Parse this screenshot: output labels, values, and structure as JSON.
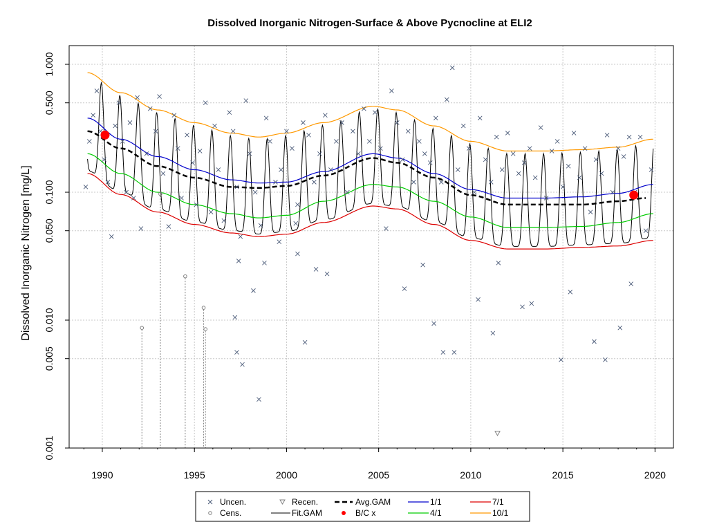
{
  "chart_data": {
    "type": "scatter",
    "title": "Dissolved Inorganic Nitrogen-Surface & Above Pycnocline at ELI2",
    "xlabel": "",
    "ylabel": "Dissolved Inorganic Nitrogen [mg/L]",
    "x_scale": "linear",
    "y_scale": "log",
    "xlim": [
      1988.2,
      2021.0
    ],
    "ylim": [
      0.001,
      1.4
    ],
    "x_ticks": [
      1990,
      1995,
      2000,
      2005,
      2010,
      2015,
      2020
    ],
    "x_tick_labels": [
      "1990",
      "1995",
      "2000",
      "2005",
      "2010",
      "2015",
      "2020"
    ],
    "y_ticks": [
      0.001,
      0.005,
      0.01,
      0.05,
      0.1,
      0.5,
      1.0
    ],
    "y_tick_labels": [
      "0.001",
      "0.005",
      "0.010",
      "0.050",
      "0.100",
      "0.500",
      "1.000"
    ],
    "grid": true,
    "legend_position": "bottom-center",
    "legend": [
      {
        "label": "Uncen.",
        "symbol": "x"
      },
      {
        "label": "Cens.",
        "symbol": "o"
      },
      {
        "label": "Recen.",
        "symbol": "triangle-down"
      },
      {
        "label": "Fit.GAM",
        "symbol": "line-black"
      },
      {
        "label": "Avg.GAM",
        "symbol": "dash-black"
      },
      {
        "label": "B/C x",
        "symbol": "red-diamond"
      },
      {
        "label": "1/1",
        "symbol": "line-blue"
      },
      {
        "label": "4/1",
        "symbol": "line-green"
      },
      {
        "label": "7/1",
        "symbol": "line-red"
      },
      {
        "label": "10/1",
        "symbol": "line-orange"
      }
    ],
    "colors": {
      "uncen": "#4a5a78",
      "cens": "#808080",
      "fit": "#000000",
      "avg": "#000000",
      "bc": "#ff0000",
      "jan1": "#0000cc",
      "apr1": "#00cc00",
      "jul1": "#dd0000",
      "oct1": "#ff9900",
      "grid": "#c8c8c8"
    },
    "seasonal_curves": [
      {
        "name": "1/1",
        "color_key": "jan1",
        "x": [
          1989.2,
          1991,
          1993,
          1995,
          1997,
          1998.5,
          2000,
          2002,
          2004.7,
          2006,
          2008,
          2010,
          2012,
          2014,
          2016,
          2018,
          2019.9
        ],
        "y": [
          0.38,
          0.26,
          0.19,
          0.15,
          0.125,
          0.118,
          0.12,
          0.145,
          0.2,
          0.185,
          0.14,
          0.105,
          0.09,
          0.09,
          0.092,
          0.098,
          0.115
        ]
      },
      {
        "name": "4/1",
        "color_key": "apr1",
        "x": [
          1989.2,
          1991,
          1993,
          1995,
          1997,
          1998.5,
          2000,
          2002,
          2004.7,
          2006,
          2008,
          2010,
          2012,
          2014,
          2016,
          2018,
          2019.9
        ],
        "y": [
          0.2,
          0.14,
          0.1,
          0.08,
          0.068,
          0.063,
          0.066,
          0.085,
          0.115,
          0.11,
          0.085,
          0.064,
          0.053,
          0.053,
          0.054,
          0.058,
          0.068
        ]
      },
      {
        "name": "7/1",
        "color_key": "jul1",
        "x": [
          1989.2,
          1991,
          1993,
          1995,
          1997,
          1998.5,
          2000,
          2002,
          2004.7,
          2006,
          2008,
          2010,
          2012,
          2014,
          2016,
          2018,
          2019.9
        ],
        "y": [
          0.14,
          0.096,
          0.07,
          0.056,
          0.048,
          0.045,
          0.047,
          0.058,
          0.078,
          0.074,
          0.056,
          0.042,
          0.036,
          0.036,
          0.037,
          0.038,
          0.042
        ]
      },
      {
        "name": "10/1",
        "color_key": "oct1",
        "x": [
          1989.2,
          1991,
          1993,
          1995,
          1997,
          1998.5,
          2000,
          2002,
          2004.7,
          2006,
          2008,
          2010,
          2012,
          2014,
          2016,
          2018,
          2019.9
        ],
        "y": [
          0.86,
          0.6,
          0.44,
          0.35,
          0.29,
          0.27,
          0.29,
          0.35,
          0.47,
          0.44,
          0.33,
          0.25,
          0.21,
          0.21,
          0.215,
          0.225,
          0.26
        ]
      },
      {
        "name": "Avg.GAM",
        "color_key": "avg",
        "dashed": true,
        "x": [
          1989.2,
          1991,
          1993,
          1995,
          1997,
          1998.5,
          2000,
          2002,
          2004.7,
          2006,
          2008,
          2010,
          2012,
          2014,
          2016,
          2018,
          2019.5
        ],
        "y": [
          0.3,
          0.22,
          0.16,
          0.13,
          0.11,
          0.108,
          0.112,
          0.135,
          0.185,
          0.17,
          0.13,
          0.095,
          0.08,
          0.08,
          0.08,
          0.085,
          0.09
        ]
      }
    ],
    "fit_gam": {
      "start_year": 1989.2,
      "end_year": 2019.9,
      "cycle_years": 1.0,
      "upper_curve": "10/1",
      "lower_curve": "7/1"
    },
    "bc_points": [
      {
        "x": 1990.15,
        "y": 0.28
      },
      {
        "x": 2018.85,
        "y": 0.095
      }
    ],
    "uncensored_points": {
      "x": [
        1989.1,
        1989.3,
        1989.5,
        1989.7,
        1989.9,
        1990.1,
        1990.3,
        1990.5,
        1990.7,
        1990.9,
        1991.1,
        1991.3,
        1991.5,
        1991.7,
        1991.9,
        1992.1,
        1992.4,
        1992.6,
        1992.9,
        1993.1,
        1993.3,
        1993.6,
        1993.9,
        1994.1,
        1994.3,
        1994.6,
        1994.9,
        1995.1,
        1995.3,
        1995.6,
        1995.9,
        1996.1,
        1996.3,
        1996.6,
        1996.9,
        1997.1,
        1997.3,
        1997.5,
        1997.8,
        1998.0,
        1998.3,
        1998.6,
        1998.9,
        1999.1,
        1999.4,
        1999.7,
        2000.0,
        2000.3,
        2000.6,
        2000.9,
        2001.2,
        2001.5,
        2001.8,
        2002.1,
        2002.4,
        2002.7,
        2003.0,
        2003.3,
        2003.6,
        2003.9,
        2004.2,
        2004.5,
        2004.8,
        2005.1,
        2005.4,
        2005.7,
        2006.0,
        2006.3,
        2006.6,
        2006.9,
        2007.2,
        2007.5,
        2007.8,
        2008.1,
        2008.4,
        2008.7,
        2009.0,
        2009.3,
        2009.6,
        2009.9,
        2010.2,
        2010.5,
        2010.8,
        2011.1,
        2011.4,
        2011.7,
        2012.0,
        2012.3,
        2012.6,
        2012.9,
        2013.2,
        2013.5,
        2013.8,
        2014.1,
        2014.4,
        2014.7,
        2015.0,
        2015.3,
        2015.6,
        2015.9,
        2016.2,
        2016.5,
        2016.8,
        2017.1,
        2017.4,
        2017.7,
        2018.0,
        2018.3,
        2018.6,
        2018.9,
        2019.2,
        2019.5,
        2019.8,
        1997.2,
        1997.4,
        1997.6,
        1998.2,
        1998.8,
        1999.6,
        2000.5,
        2001.0,
        2001.6,
        2002.2,
        2006.4,
        2007.4,
        2008.0,
        2008.5,
        2009.1,
        2010.4,
        2011.2,
        2012.8,
        2013.3,
        2014.9,
        2015.4,
        2016.7,
        2017.3,
        2018.1,
        2018.7,
        1998.5,
        2000.6,
        1997.3,
        2011.5
      ],
      "y": [
        0.11,
        0.25,
        0.4,
        0.62,
        0.3,
        0.18,
        0.12,
        0.045,
        0.33,
        0.5,
        0.25,
        0.1,
        0.35,
        0.09,
        0.55,
        0.052,
        0.2,
        0.45,
        0.3,
        0.56,
        0.14,
        0.054,
        0.4,
        0.22,
        0.09,
        0.28,
        0.17,
        0.08,
        0.21,
        0.5,
        0.07,
        0.33,
        0.15,
        0.06,
        0.42,
        0.3,
        0.11,
        0.045,
        0.52,
        0.2,
        0.1,
        0.055,
        0.38,
        0.25,
        0.12,
        0.15,
        0.3,
        0.22,
        0.08,
        0.35,
        0.28,
        0.12,
        0.2,
        0.4,
        0.15,
        0.25,
        0.35,
        0.1,
        0.3,
        0.2,
        0.45,
        0.25,
        0.42,
        0.22,
        0.052,
        0.62,
        0.35,
        0.18,
        0.3,
        0.12,
        0.25,
        0.2,
        0.17,
        0.38,
        0.12,
        0.53,
        0.94,
        0.15,
        0.33,
        0.22,
        0.1,
        0.38,
        0.18,
        0.12,
        0.27,
        0.15,
        0.29,
        0.2,
        0.14,
        0.17,
        0.22,
        0.13,
        0.32,
        0.09,
        0.21,
        0.25,
        0.11,
        0.16,
        0.29,
        0.13,
        0.22,
        0.07,
        0.18,
        0.14,
        0.28,
        0.1,
        0.22,
        0.19,
        0.27,
        0.1,
        0.27,
        0.05,
        0.15,
        0.0105,
        0.029,
        0.0045,
        0.017,
        0.028,
        0.041,
        0.057,
        0.0067,
        0.025,
        0.023,
        0.0176,
        0.027,
        0.0094,
        0.0056,
        0.0056,
        0.0145,
        0.0079,
        0.0127,
        0.0135,
        0.0049,
        0.0166,
        0.0068,
        0.0049,
        0.0087,
        0.0192,
        0.0024,
        0.033,
        0.0056,
        0.028
      ]
    },
    "censored_points": [
      {
        "x": 1992.15,
        "y": 0.0087
      },
      {
        "x": 1993.15,
        "y": 0.097
      },
      {
        "x": 1994.5,
        "y": 0.022
      },
      {
        "x": 1995.5,
        "y": 0.0125
      },
      {
        "x": 1995.6,
        "y": 0.0085
      }
    ],
    "recensored_points": [
      {
        "x": 2011.45,
        "y": 0.0013
      }
    ]
  }
}
